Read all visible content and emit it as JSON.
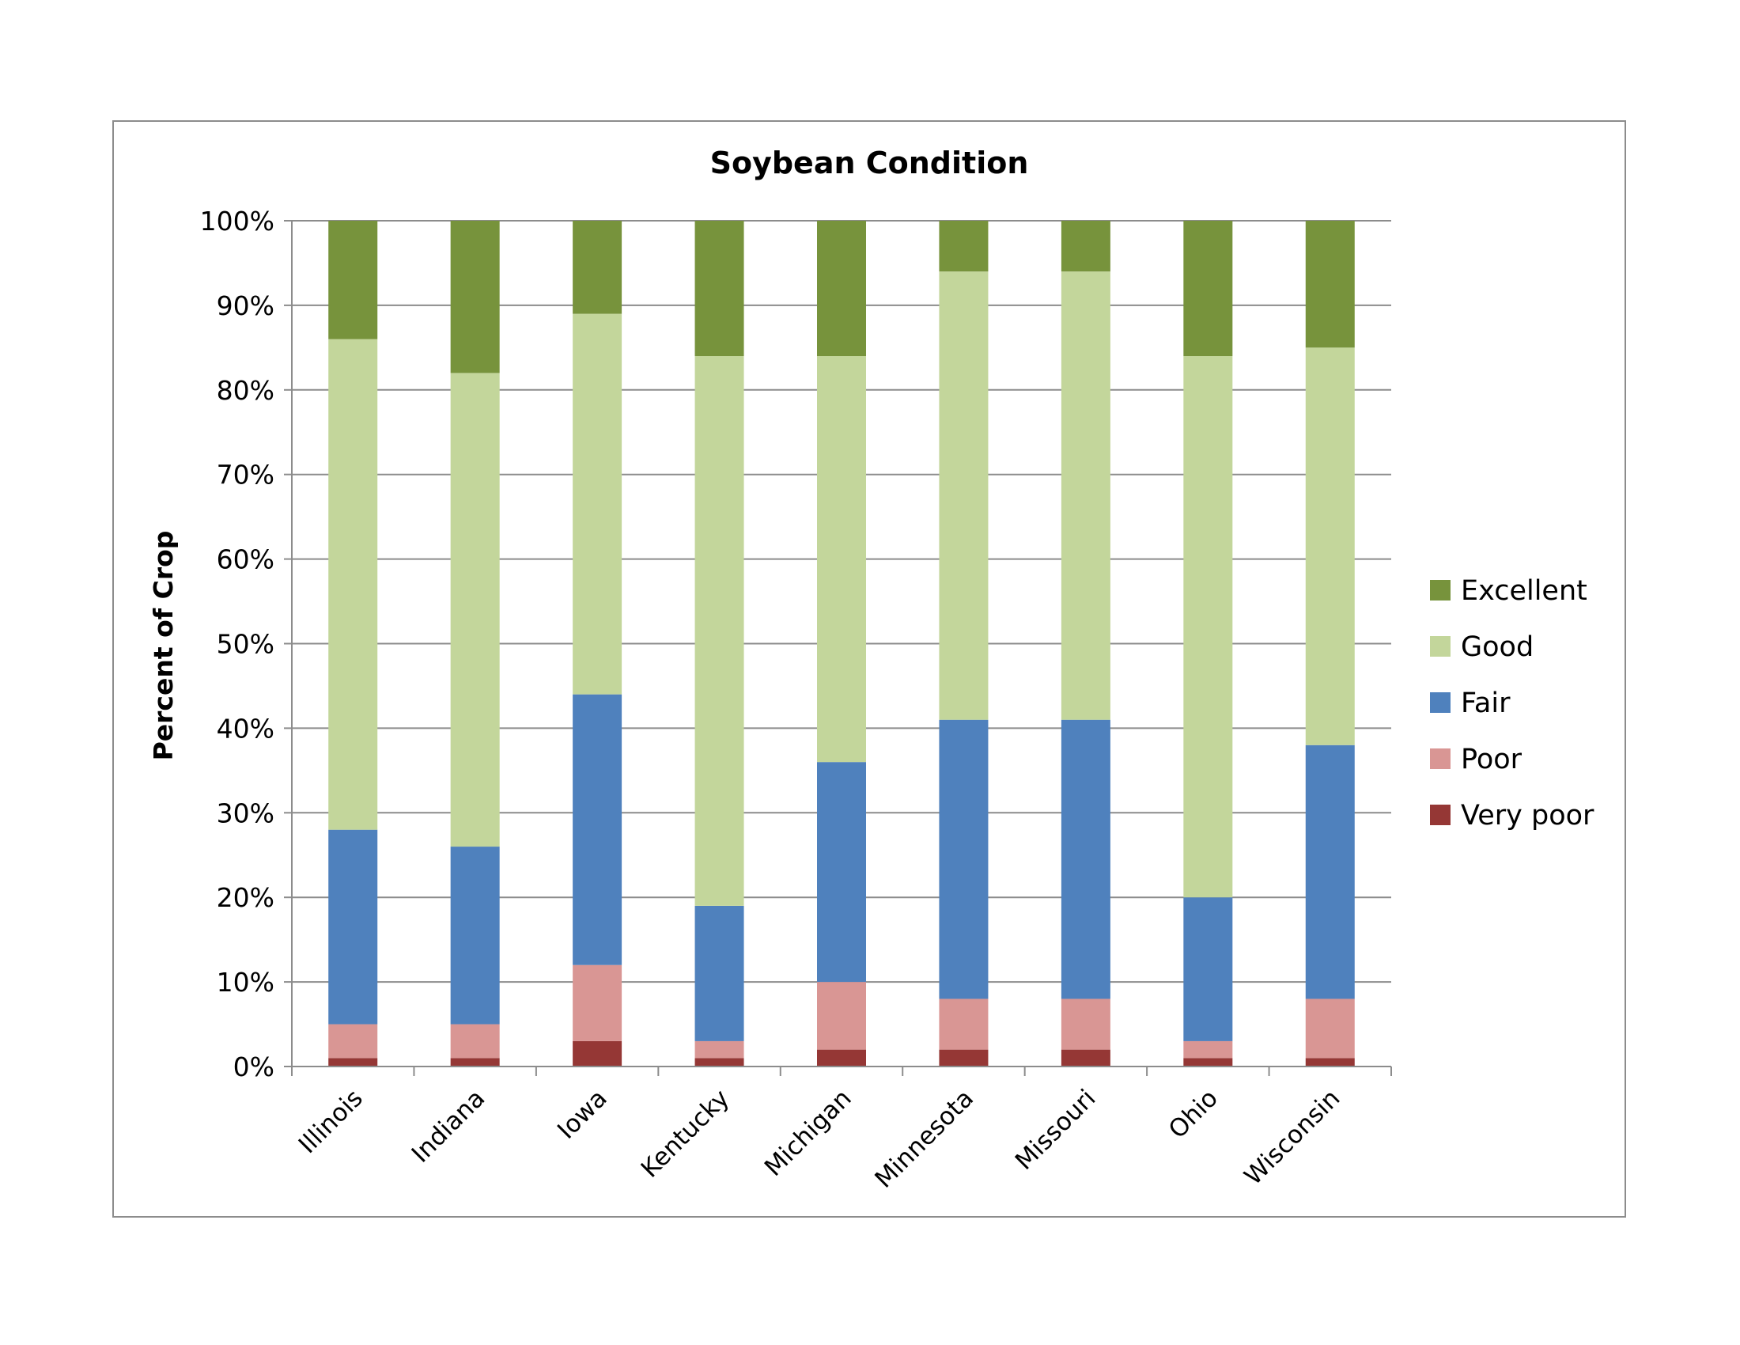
{
  "chart_data": {
    "type": "bar",
    "stacked": "percent",
    "title": "Soybean Condition",
    "xlabel": "",
    "ylabel": "Percent of Crop",
    "ylim": [
      0,
      100
    ],
    "yticks": [
      "0%",
      "10%",
      "20%",
      "30%",
      "40%",
      "50%",
      "60%",
      "70%",
      "80%",
      "90%",
      "100%"
    ],
    "grid": true,
    "legend_position": "right",
    "categories": [
      "Illinois",
      "Indiana",
      "Iowa",
      "Kentucky",
      "Michigan",
      "Minnesota",
      "Missouri",
      "Ohio",
      "Wisconsin"
    ],
    "series": [
      {
        "name": "Very poor",
        "color": "#953735",
        "values": [
          1,
          1,
          3,
          1,
          2,
          2,
          2,
          1,
          1
        ]
      },
      {
        "name": "Poor",
        "color": "#d99694",
        "values": [
          4,
          4,
          9,
          2,
          8,
          6,
          6,
          2,
          7
        ]
      },
      {
        "name": "Fair",
        "color": "#4f81bd",
        "values": [
          23,
          21,
          32,
          16,
          26,
          33,
          33,
          17,
          30
        ]
      },
      {
        "name": "Good",
        "color": "#c3d69b",
        "values": [
          58,
          56,
          45,
          65,
          48,
          53,
          53,
          64,
          47
        ]
      },
      {
        "name": "Excellent",
        "color": "#77933c",
        "values": [
          14,
          18,
          11,
          16,
          16,
          6,
          6,
          16,
          15
        ]
      }
    ],
    "legend_order": [
      "Excellent",
      "Good",
      "Fair",
      "Poor",
      "Very poor"
    ]
  }
}
